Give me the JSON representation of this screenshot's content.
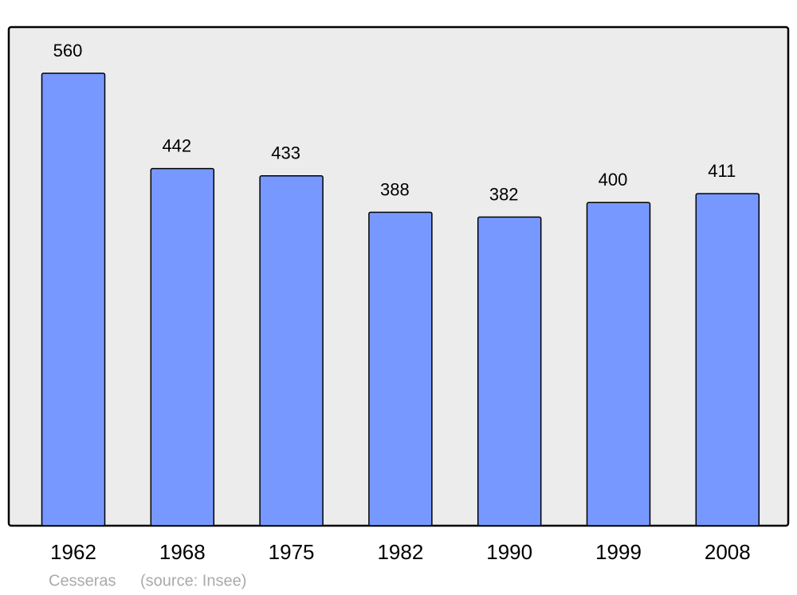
{
  "chart_data": {
    "type": "bar",
    "categories": [
      "1962",
      "1968",
      "1975",
      "1982",
      "1990",
      "1999",
      "2008"
    ],
    "values": [
      560,
      442,
      433,
      388,
      382,
      400,
      411
    ],
    "color": "#7799ff",
    "place": "Cesseras",
    "source": "(source: Insee)"
  }
}
